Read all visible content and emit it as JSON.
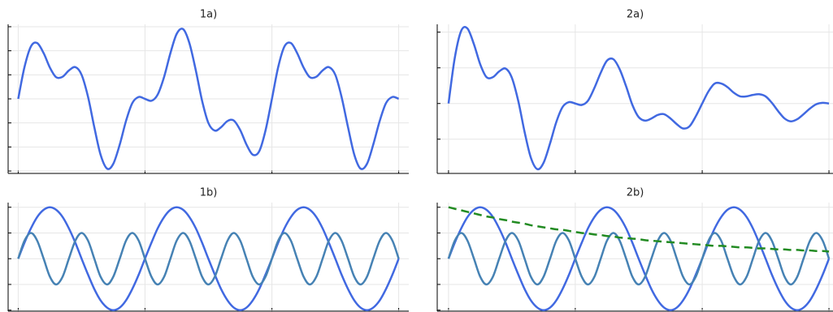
{
  "chart_data": [
    {
      "type": "line",
      "title": "1a)",
      "x": [
        0,
        0.31,
        0.63,
        0.94,
        1.26,
        1.57,
        1.88,
        2.2,
        2.51,
        2.83,
        3.14,
        3.46,
        3.77,
        4.08,
        4.4,
        4.71,
        5.03,
        5.34,
        5.65,
        5.97,
        6.28,
        6.6,
        6.91,
        7.23,
        7.54,
        7.85,
        8.17,
        8.48,
        8.8,
        9.11,
        9.42,
        9.74,
        10.05,
        10.37,
        10.68,
        11,
        11.31,
        11.62,
        11.94,
        12.25,
        12.57,
        12.88,
        13.19,
        13.51,
        13.82,
        14.14,
        14.45,
        14.77,
        15.08,
        15.39,
        15.71,
        16.02,
        16.34,
        16.65,
        16.96,
        17.28,
        17.59,
        17.91,
        18.22,
        18.54,
        18.85
      ],
      "series": [
        {
          "color": "#4169e1",
          "values": [
            0,
            0.66,
            1.09,
            1.16,
            0.95,
            0.65,
            0.45,
            0.46,
            0.59,
            0.66,
            0.5,
            0.04,
            -0.59,
            -1.16,
            -1.45,
            -1.35,
            -0.95,
            -0.46,
            -0.09,
            0.04,
            0,
            -0.04,
            0.09,
            0.46,
            0.95,
            1.35,
            1.45,
            1.16,
            0.59,
            -0.04,
            -0.5,
            -0.66,
            -0.59,
            -0.46,
            -0.45,
            -0.65,
            -0.95,
            -1.16,
            -1.09,
            -0.66,
            0,
            0.66,
            1.09,
            1.16,
            0.95,
            0.65,
            0.45,
            0.46,
            0.59,
            0.66,
            0.5,
            0.04,
            -0.59,
            -1.16,
            -1.45,
            -1.35,
            -0.95,
            -0.46,
            -0.09,
            0.04,
            0
          ]
        }
      ],
      "xlim": [
        -0.5,
        19.35
      ],
      "ylim": [
        -1.55,
        1.55
      ],
      "xticks": [
        0,
        6.28,
        12.57,
        18.85
      ],
      "yticks": [
        -1.5,
        -1,
        -0.5,
        0,
        0.5,
        1,
        1.5
      ],
      "grid": true
    },
    {
      "type": "line",
      "title": "2a)",
      "x": [
        0,
        0.31,
        0.63,
        0.94,
        1.26,
        1.57,
        1.88,
        2.2,
        2.51,
        2.83,
        3.14,
        3.46,
        3.77,
        4.08,
        4.4,
        4.71,
        5.03,
        5.34,
        5.65,
        5.97,
        6.28,
        6.6,
        6.91,
        7.23,
        7.54,
        7.85,
        8.17,
        8.48,
        8.8,
        9.11,
        9.42,
        9.74,
        10.05,
        10.37,
        10.68,
        11,
        11.31,
        11.62,
        11.94,
        12.25,
        12.57,
        12.88,
        13.19,
        13.51,
        13.82,
        14.14,
        14.45,
        14.77,
        15.08,
        15.39,
        15.71,
        16.02,
        16.34,
        16.65,
        16.96,
        17.28,
        17.59,
        17.91,
        18.22,
        18.54,
        18.85
      ],
      "series": [
        {
          "color": "#4169e1",
          "values": [
            0,
            0.64,
            1.02,
            1.05,
            0.83,
            0.55,
            0.37,
            0.37,
            0.45,
            0.49,
            0.36,
            0.03,
            -0.4,
            -0.76,
            -0.92,
            -0.83,
            -0.56,
            -0.26,
            -0.05,
            0.02,
            0,
            -0.02,
            0.04,
            0.22,
            0.43,
            0.6,
            0.62,
            0.48,
            0.24,
            -0.02,
            -0.19,
            -0.24,
            -0.21,
            -0.16,
            -0.15,
            -0.21,
            -0.29,
            -0.35,
            -0.32,
            -0.18,
            0,
            0.17,
            0.28,
            0.28,
            0.23,
            0.15,
            0.1,
            0.1,
            0.12,
            0.13,
            0.1,
            0.01,
            -0.11,
            -0.21,
            -0.25,
            -0.22,
            -0.15,
            -0.07,
            -0.01,
            0.01,
            0
          ]
        }
      ],
      "xlim": [
        -0.56,
        19.05
      ],
      "ylim": [
        -0.98,
        1.11
      ],
      "xticks": [
        0,
        6.28,
        12.57,
        18.85
      ],
      "yticks": [
        -0.5,
        0,
        0.5,
        1
      ],
      "grid": true
    },
    {
      "type": "line",
      "title": "1b)",
      "x": [
        0,
        0.31,
        0.63,
        0.94,
        1.26,
        1.57,
        1.88,
        2.2,
        2.51,
        2.83,
        3.14,
        3.46,
        3.77,
        4.08,
        4.4,
        4.71,
        5.03,
        5.34,
        5.65,
        5.97,
        6.28,
        6.6,
        6.91,
        7.23,
        7.54,
        7.85,
        8.17,
        8.48,
        8.8,
        9.11,
        9.42,
        9.74,
        10.05,
        10.37,
        10.68,
        11,
        11.31,
        11.62,
        11.94,
        12.25,
        12.57,
        12.88,
        13.19,
        13.51,
        13.82,
        14.14,
        14.45,
        14.77,
        15.08,
        15.39,
        15.71,
        16.02,
        16.34,
        16.65,
        16.96,
        17.28,
        17.59,
        17.91,
        18.22,
        18.54,
        18.85
      ],
      "series": [
        {
          "color": "#4169e1",
          "values": [
            0,
            0.31,
            0.59,
            0.81,
            0.95,
            1,
            0.95,
            0.81,
            0.59,
            0.31,
            0,
            -0.31,
            -0.59,
            -0.81,
            -0.95,
            -1,
            -0.95,
            -0.81,
            -0.59,
            -0.31,
            0,
            0.31,
            0.59,
            0.81,
            0.95,
            1,
            0.95,
            0.81,
            0.59,
            0.31,
            0,
            -0.31,
            -0.59,
            -0.81,
            -0.95,
            -1,
            -0.95,
            -0.81,
            -0.59,
            -0.31,
            0,
            0.31,
            0.59,
            0.81,
            0.95,
            1,
            0.95,
            0.81,
            0.59,
            0.31,
            0,
            -0.31,
            -0.59,
            -0.81,
            -0.95,
            -1,
            -0.95,
            -0.81,
            -0.59,
            -0.31,
            0
          ]
        },
        {
          "color": "#4682b4",
          "values": [
            0,
            0.35,
            0.5,
            0.35,
            0,
            -0.35,
            -0.5,
            -0.35,
            0,
            0.35,
            0.5,
            0.35,
            0,
            -0.35,
            -0.5,
            -0.35,
            0,
            0.35,
            0.5,
            0.35,
            0,
            -0.35,
            -0.5,
            -0.35,
            0,
            0.35,
            0.5,
            0.35,
            0,
            -0.35,
            -0.5,
            -0.35,
            0,
            0.35,
            0.5,
            0.35,
            0,
            -0.35,
            -0.5,
            -0.35,
            0,
            0.35,
            0.5,
            0.35,
            0,
            -0.35,
            -0.5,
            -0.35,
            0,
            0.35,
            0.5,
            0.35,
            0,
            -0.35,
            -0.5,
            -0.35,
            0,
            0.35,
            0.5,
            0.35,
            0
          ]
        }
      ],
      "xlim": [
        -0.5,
        19.35
      ],
      "ylim": [
        -1.02,
        1.09
      ],
      "xticks": [
        0,
        6.28,
        12.57,
        18.85
      ],
      "yticks": [
        -1,
        -0.5,
        0,
        0.5,
        1
      ],
      "grid": true
    },
    {
      "type": "line",
      "title": "2b)",
      "x": [
        0,
        0.31,
        0.63,
        0.94,
        1.26,
        1.57,
        1.88,
        2.2,
        2.51,
        2.83,
        3.14,
        3.46,
        3.77,
        4.08,
        4.4,
        4.71,
        5.03,
        5.34,
        5.65,
        5.97,
        6.28,
        6.6,
        6.91,
        7.23,
        7.54,
        7.85,
        8.17,
        8.48,
        8.8,
        9.11,
        9.42,
        9.74,
        10.05,
        10.37,
        10.68,
        11,
        11.31,
        11.62,
        11.94,
        12.25,
        12.57,
        12.88,
        13.19,
        13.51,
        13.82,
        14.14,
        14.45,
        14.77,
        15.08,
        15.39,
        15.71,
        16.02,
        16.34,
        16.65,
        16.96,
        17.28,
        17.59,
        17.91,
        18.22,
        18.54,
        18.85
      ],
      "series": [
        {
          "color": "#4169e1",
          "values": [
            0,
            0.31,
            0.59,
            0.81,
            0.95,
            1,
            0.95,
            0.81,
            0.59,
            0.31,
            0,
            -0.31,
            -0.59,
            -0.81,
            -0.95,
            -1,
            -0.95,
            -0.81,
            -0.59,
            -0.31,
            0,
            0.31,
            0.59,
            0.81,
            0.95,
            1,
            0.95,
            0.81,
            0.59,
            0.31,
            0,
            -0.31,
            -0.59,
            -0.81,
            -0.95,
            -1,
            -0.95,
            -0.81,
            -0.59,
            -0.31,
            0,
            0.31,
            0.59,
            0.81,
            0.95,
            1,
            0.95,
            0.81,
            0.59,
            0.31,
            0,
            -0.31,
            -0.59,
            -0.81,
            -0.95,
            -1,
            -0.95,
            -0.81,
            -0.59,
            -0.31,
            0
          ]
        },
        {
          "color": "#4682b4",
          "values": [
            0,
            0.35,
            0.5,
            0.35,
            0,
            -0.35,
            -0.5,
            -0.35,
            0,
            0.35,
            0.5,
            0.35,
            0,
            -0.35,
            -0.5,
            -0.35,
            0,
            0.35,
            0.5,
            0.35,
            0,
            -0.35,
            -0.5,
            -0.35,
            0,
            0.35,
            0.5,
            0.35,
            0,
            -0.35,
            -0.5,
            -0.35,
            0,
            0.35,
            0.5,
            0.35,
            0,
            -0.35,
            -0.5,
            -0.35,
            0,
            0.35,
            0.5,
            0.35,
            0,
            -0.35,
            -0.5,
            -0.35,
            0,
            0.35,
            0.5,
            0.35,
            0,
            -0.35,
            -0.5,
            -0.35,
            0,
            0.35,
            0.5,
            0.35,
            0
          ]
        },
        {
          "color": "#228b22",
          "linestyle": "dashed",
          "values": [
            1,
            0.97,
            0.94,
            0.91,
            0.88,
            0.85,
            0.82,
            0.8,
            0.77,
            0.75,
            0.72,
            0.7,
            0.68,
            0.65,
            0.63,
            0.61,
            0.59,
            0.57,
            0.56,
            0.54,
            0.52,
            0.5,
            0.49,
            0.47,
            0.46,
            0.44,
            0.43,
            0.41,
            0.4,
            0.39,
            0.38,
            0.36,
            0.35,
            0.34,
            0.33,
            0.32,
            0.31,
            0.3,
            0.29,
            0.28,
            0.27,
            0.26,
            0.25,
            0.25,
            0.24,
            0.23,
            0.22,
            0.22,
            0.21,
            0.2,
            0.2,
            0.19,
            0.18,
            0.18,
            0.17,
            0.17,
            0.16,
            0.16,
            0.15,
            0.15,
            0.14
          ]
        }
      ],
      "xlim": [
        -0.56,
        19.05
      ],
      "ylim": [
        -1.02,
        1.09
      ],
      "xticks": [
        0,
        6.28,
        12.57,
        18.85
      ],
      "yticks": [
        -1,
        -0.5,
        0,
        0.5,
        1
      ],
      "grid": true
    }
  ]
}
